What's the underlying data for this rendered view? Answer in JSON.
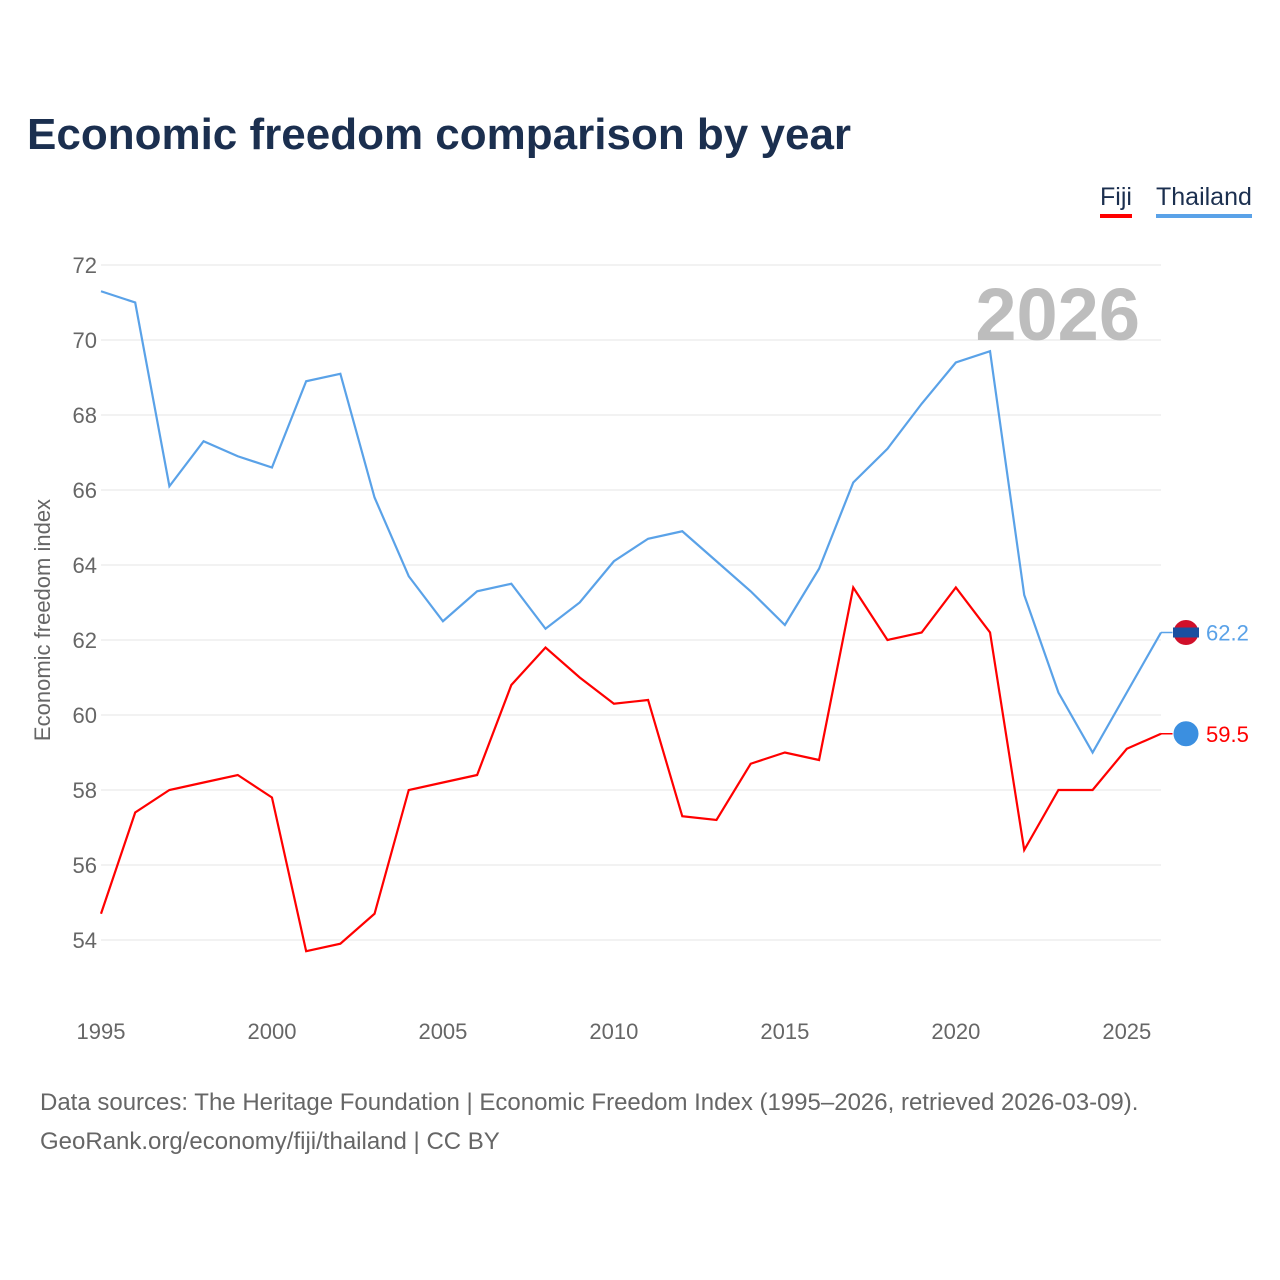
{
  "chart_data": {
    "type": "line",
    "title": "Economic freedom comparison by year",
    "xlabel": "",
    "ylabel": "Economic freedom index",
    "ylim": [
      53,
      72.5
    ],
    "xlim": [
      1995,
      2026
    ],
    "yticks": [
      54,
      56,
      58,
      60,
      62,
      64,
      66,
      68,
      70,
      72
    ],
    "xticks": [
      1995,
      2000,
      2005,
      2010,
      2015,
      2020,
      2025
    ],
    "grid": true,
    "legend_position": "top-right",
    "year_watermark": "2026",
    "x": [
      1995,
      1996,
      1997,
      1998,
      1999,
      2000,
      2001,
      2002,
      2003,
      2004,
      2005,
      2006,
      2007,
      2008,
      2009,
      2010,
      2011,
      2012,
      2013,
      2014,
      2015,
      2016,
      2017,
      2018,
      2019,
      2020,
      2021,
      2022,
      2023,
      2024,
      2025,
      2026
    ],
    "series": [
      {
        "name": "Fiji",
        "color": "#ff0000",
        "end_label": "59.5",
        "values": [
          54.7,
          57.4,
          58.0,
          58.2,
          58.4,
          57.8,
          53.7,
          53.9,
          54.7,
          58.0,
          58.2,
          58.4,
          60.8,
          61.8,
          61.0,
          60.3,
          60.4,
          57.3,
          57.2,
          58.7,
          59.0,
          58.8,
          63.4,
          62.0,
          62.2,
          63.4,
          62.2,
          56.4,
          58.0,
          58.0,
          59.1,
          59.5
        ]
      },
      {
        "name": "Thailand",
        "color": "#5aa2e8",
        "end_label": "62.2",
        "values": [
          71.3,
          71.0,
          66.1,
          67.3,
          66.9,
          66.6,
          68.9,
          69.1,
          65.8,
          63.7,
          62.5,
          63.3,
          63.5,
          62.3,
          63.0,
          64.1,
          64.7,
          64.9,
          64.1,
          63.3,
          62.4,
          63.9,
          66.2,
          67.1,
          68.3,
          69.4,
          69.7,
          63.2,
          60.6,
          59.0,
          60.6,
          62.2
        ]
      }
    ]
  },
  "footer": {
    "line1": "Data sources: The Heritage Foundation | Economic Freedom Index (1995–2026, retrieved 2026-03-09).",
    "line2": "GeoRank.org/economy/fiji/thailand | CC BY"
  }
}
